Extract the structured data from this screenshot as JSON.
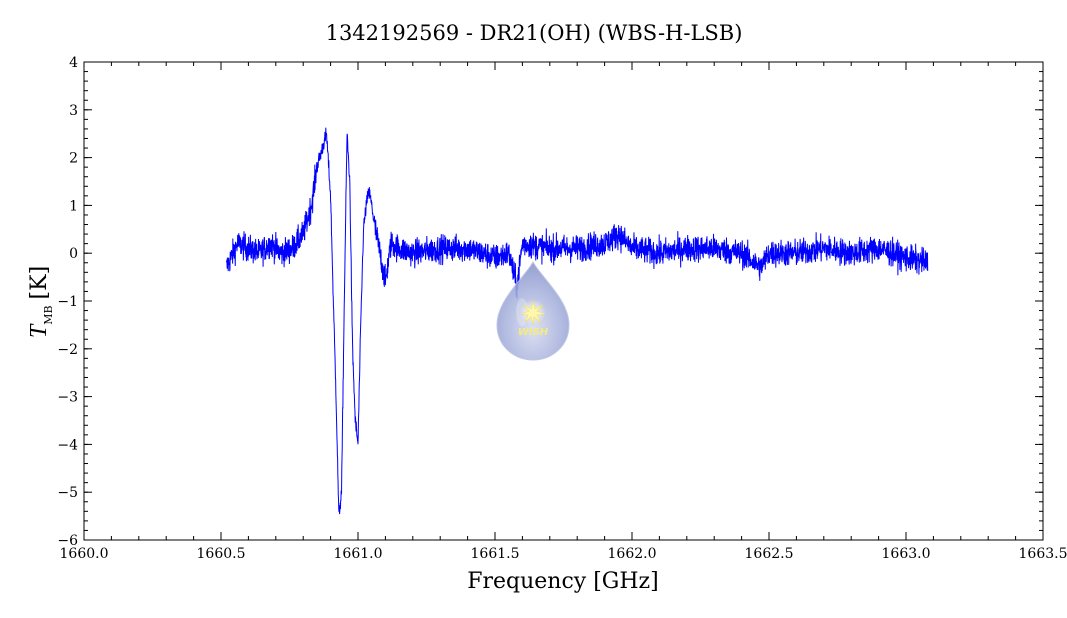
{
  "chart_data": {
    "type": "line",
    "title": "1342192569 - DR21(OH) (WBS-H-LSB)",
    "xlabel": "Frequency [GHz]",
    "ylabel_main": "T",
    "ylabel_sub": "MB",
    "ylabel_unit": "[K]",
    "xlim": [
      1660.0,
      1663.5
    ],
    "ylim": [
      -6,
      4
    ],
    "x_ticks": [
      "1660.0",
      "1660.5",
      "1661.0",
      "1661.5",
      "1662.0",
      "1662.5",
      "1663.0",
      "1663.5"
    ],
    "y_ticks": [
      "4",
      "3",
      "2",
      "1",
      "0",
      "-1",
      "-2",
      "-3",
      "-4",
      "-5",
      "-6"
    ],
    "grid": false,
    "series": [
      {
        "color": "#0000ff",
        "x": [
          1660.52,
          1660.56,
          1660.6,
          1660.64,
          1660.68,
          1660.72,
          1660.76,
          1660.8,
          1660.83,
          1660.85,
          1660.87,
          1660.885,
          1660.9,
          1660.91,
          1660.92,
          1660.93,
          1660.94,
          1660.95,
          1660.96,
          1660.97,
          1660.98,
          1660.99,
          1661.0,
          1661.01,
          1661.02,
          1661.03,
          1661.04,
          1661.05,
          1661.06,
          1661.08,
          1661.1,
          1661.12,
          1661.15,
          1661.2,
          1661.3,
          1661.4,
          1661.5,
          1661.55,
          1661.58,
          1661.6,
          1661.7,
          1661.8,
          1661.9,
          1661.95,
          1662.0,
          1662.1,
          1662.2,
          1662.3,
          1662.4,
          1662.47,
          1662.5,
          1662.6,
          1662.7,
          1662.8,
          1662.9,
          1663.0,
          1663.08
        ],
        "y": [
          -0.3,
          0.2,
          0.1,
          0.0,
          0.2,
          0.0,
          0.1,
          0.4,
          1.0,
          1.8,
          2.2,
          2.5,
          1.2,
          -1.0,
          -3.0,
          -5.5,
          -5.0,
          -1.0,
          2.5,
          1.5,
          -2.0,
          -3.5,
          -4.0,
          -1.5,
          0.5,
          1.0,
          1.3,
          1.0,
          0.6,
          0.0,
          -0.6,
          0.2,
          0.1,
          0.0,
          0.1,
          0.1,
          -0.1,
          0.0,
          -0.7,
          0.2,
          0.1,
          0.1,
          0.2,
          0.4,
          0.1,
          0.0,
          0.1,
          0.1,
          0.0,
          -0.3,
          0.0,
          0.0,
          0.1,
          0.0,
          0.1,
          -0.1,
          -0.2
        ],
        "noise_rms_K": 0.2
      }
    ]
  },
  "logo": {
    "text": "WISH"
  }
}
